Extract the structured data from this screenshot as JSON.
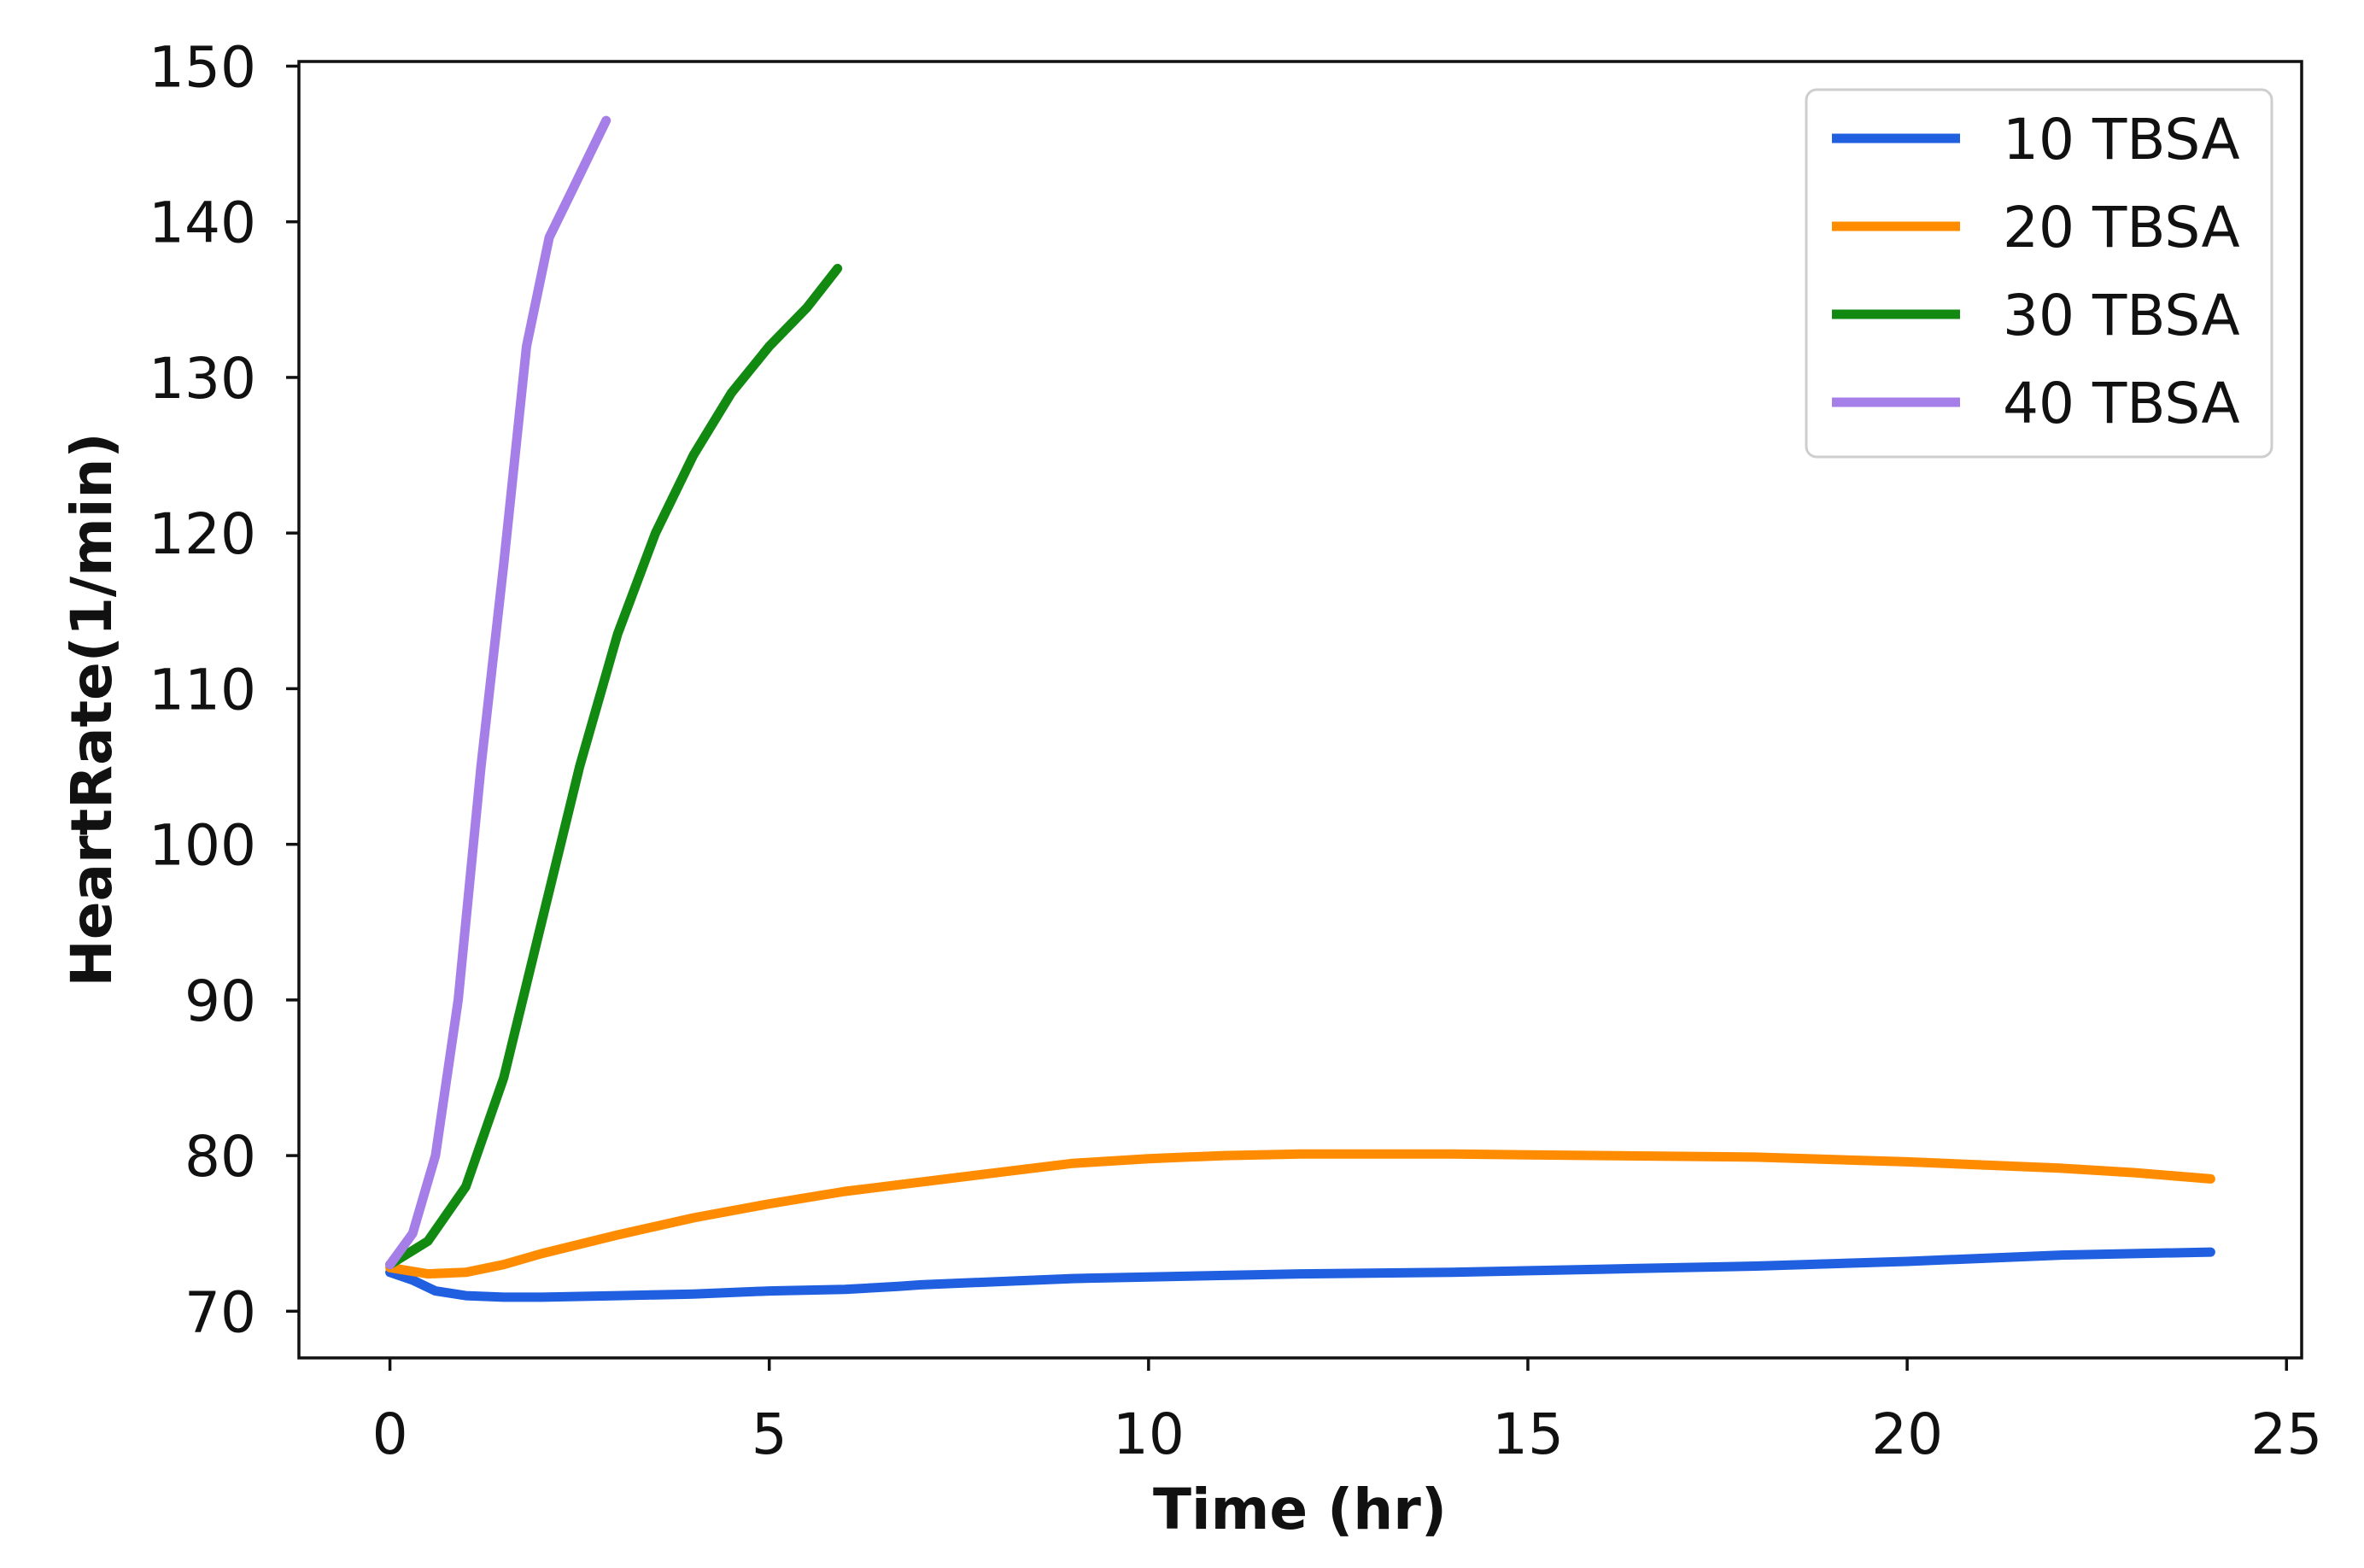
{
  "chart_data": {
    "type": "line",
    "title": "",
    "xlabel": "Time (hr)",
    "ylabel": "HeartRate(1/min)",
    "xlim": [
      -1.2,
      25.2
    ],
    "ylim": [
      67,
      150.3
    ],
    "xticks": [
      0,
      5,
      10,
      15,
      20,
      25
    ],
    "yticks": [
      70,
      80,
      90,
      100,
      110,
      120,
      130,
      140,
      150
    ],
    "grid": false,
    "legend_position": "top-right",
    "series": [
      {
        "name": "10 TBSA",
        "color": "#1f5fe0",
        "x": [
          0,
          0.3,
          0.6,
          1,
          1.5,
          2,
          3,
          4,
          5,
          6,
          6.7,
          7,
          8,
          9,
          10,
          12,
          14,
          16,
          18,
          20,
          22,
          24
        ],
        "y": [
          72.5,
          72.0,
          71.3,
          71.0,
          70.9,
          70.9,
          71.0,
          71.1,
          71.3,
          71.4,
          71.6,
          71.7,
          71.9,
          72.1,
          72.2,
          72.4,
          72.5,
          72.7,
          72.9,
          73.2,
          73.6,
          73.8
        ]
      },
      {
        "name": "20 TBSA",
        "color": "#ff8c00",
        "x": [
          0,
          0.5,
          1,
          1.5,
          2,
          3,
          4,
          5,
          6,
          7,
          8,
          9,
          10,
          11,
          12,
          14,
          16,
          18,
          20,
          22,
          23,
          24
        ],
        "y": [
          72.8,
          72.4,
          72.5,
          73.0,
          73.7,
          74.9,
          76.0,
          76.9,
          77.7,
          78.3,
          78.9,
          79.5,
          79.8,
          80.0,
          80.1,
          80.1,
          80.0,
          79.9,
          79.6,
          79.2,
          78.9,
          78.5
        ]
      },
      {
        "name": "30 TBSA",
        "color": "#128a12",
        "x": [
          0,
          0.5,
          1,
          1.5,
          2,
          2.5,
          3,
          3.5,
          4,
          4.5,
          5,
          5.5,
          5.9
        ],
        "y": [
          73.0,
          74.5,
          78.0,
          85.0,
          95.0,
          105.0,
          113.5,
          120.0,
          125.0,
          129.0,
          132.0,
          134.5,
          137.0
        ]
      },
      {
        "name": "40 TBSA",
        "color": "#a67ee8",
        "x": [
          0,
          0.3,
          0.6,
          0.9,
          1.2,
          1.5,
          1.8,
          2.1,
          2.4,
          2.6,
          2.85
        ],
        "y": [
          73.0,
          75.0,
          80.0,
          90.0,
          105.0,
          118.0,
          132.0,
          139.0,
          142.0,
          144.0,
          146.5
        ]
      }
    ]
  }
}
